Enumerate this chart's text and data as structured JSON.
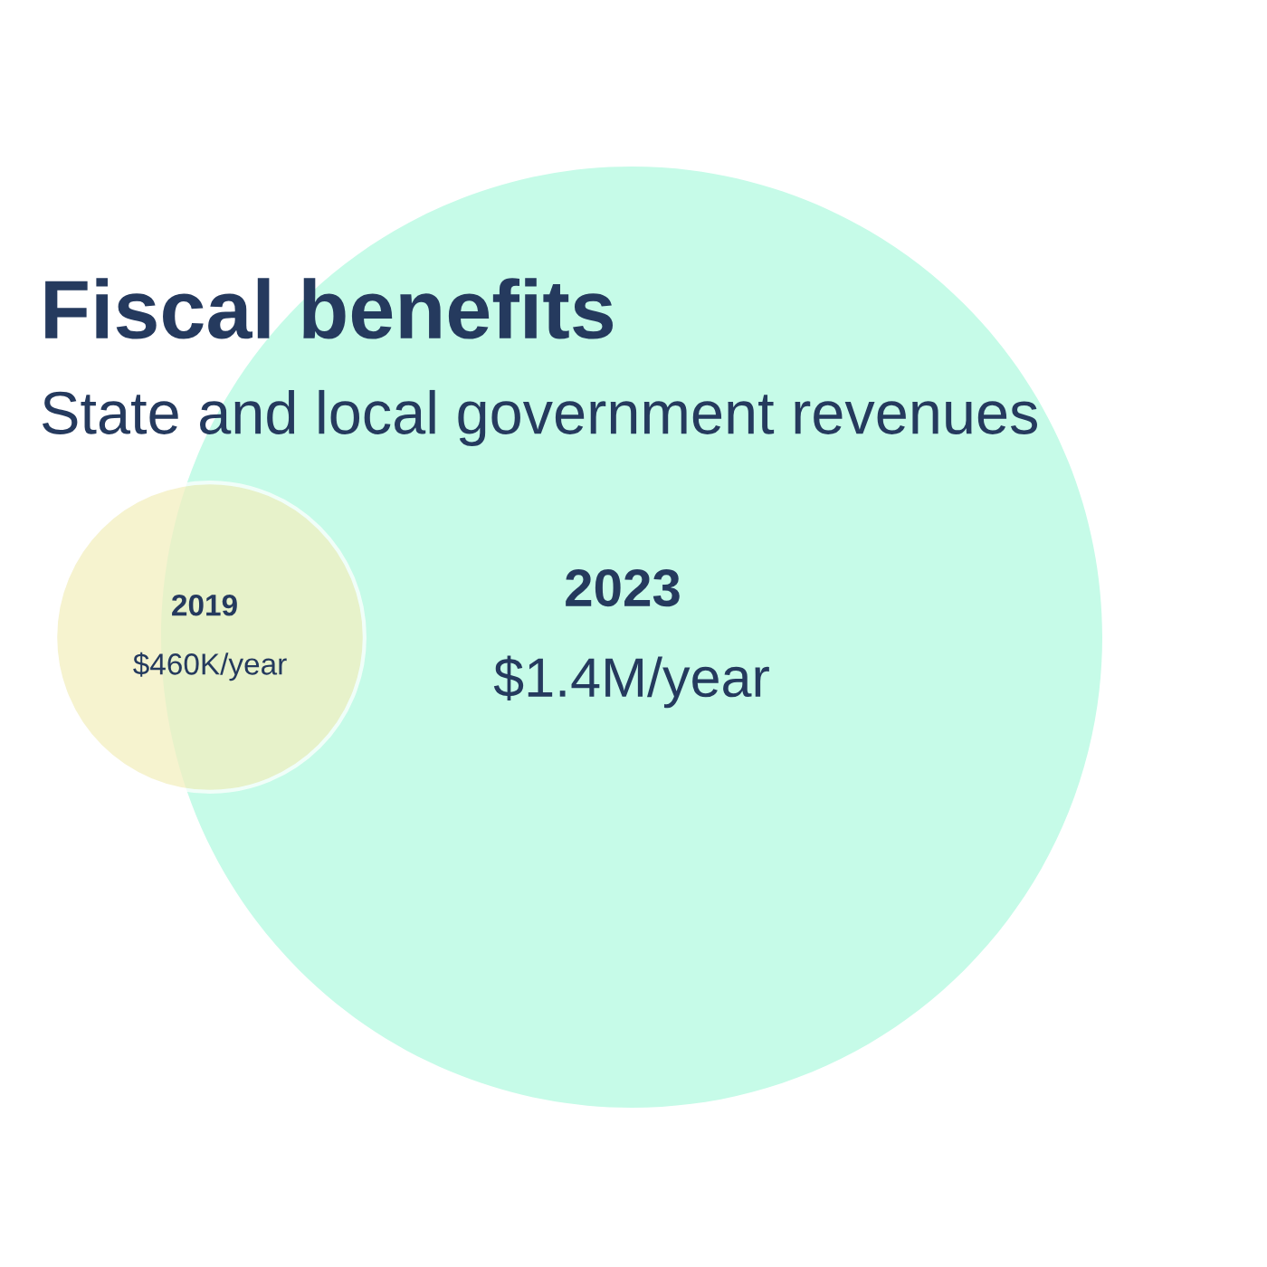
{
  "chart_data": {
    "type": "other",
    "title": "Fiscal benefits",
    "subtitle": "State and local government revenues",
    "categories": [
      "2019",
      "2023"
    ],
    "values": [
      460000,
      1400000
    ],
    "value_labels": [
      "$460K/year",
      "$1.4M/year"
    ],
    "colors": [
      "#f3efc0",
      "#c6fbe8"
    ]
  }
}
